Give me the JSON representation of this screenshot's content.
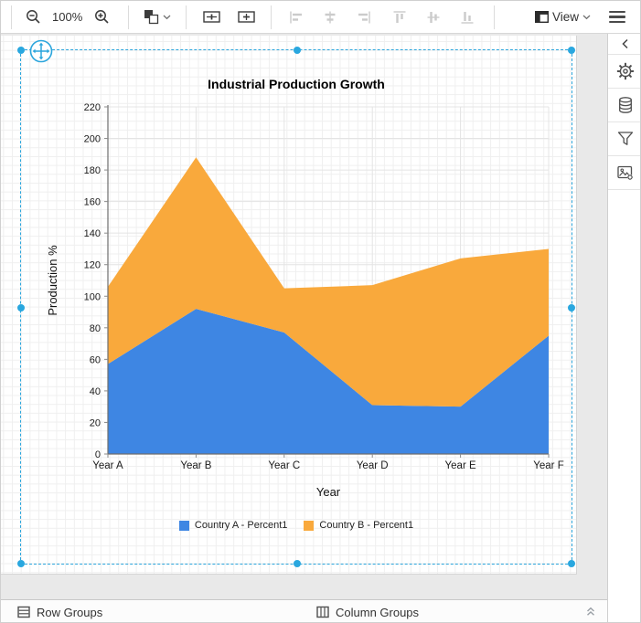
{
  "toolbar": {
    "zoom_level": "100%",
    "view_label": "View",
    "icons": {
      "zoom_out": "magnifier-minus",
      "zoom_in": "magnifier-plus",
      "theme_swatch": "overlapping-squares-dropdown",
      "make_same_width": "equal-width-box",
      "make_same_height": "equal-height-box",
      "align": [
        "align-left",
        "align-center",
        "align-right",
        "align-top",
        "align-middle",
        "align-bottom"
      ],
      "view": "layout-panel",
      "menu": "hamburger"
    }
  },
  "sidebar": {
    "items": [
      {
        "name": "collapse-panel",
        "icon": "chevron-left"
      },
      {
        "name": "properties",
        "icon": "gear"
      },
      {
        "name": "data",
        "icon": "database"
      },
      {
        "name": "filter",
        "icon": "funnel"
      },
      {
        "name": "image-manager",
        "icon": "image-settings"
      }
    ]
  },
  "bottombar": {
    "row_groups_label": "Row Groups",
    "column_groups_label": "Column Groups",
    "collapse_icon": "double-chevron-up"
  },
  "colors": {
    "selection": "#2BA5DC",
    "canvas": "#E9E9E9",
    "series_a": "#3E86E3",
    "series_b": "#F9A93C"
  },
  "chart_data": {
    "type": "area",
    "stacked": true,
    "title": "Industrial Production Growth",
    "categories": [
      "Year A",
      "Year B",
      "Year C",
      "Year D",
      "Year E",
      "Year F"
    ],
    "series": [
      {
        "name": "Country A - Percent1",
        "color": "#3E86E3",
        "values": [
          57,
          92,
          77,
          31,
          30,
          75
        ]
      },
      {
        "name": "Country B - Percent1",
        "color": "#F9A93C",
        "values": [
          49,
          96,
          28,
          76,
          94,
          55
        ]
      }
    ],
    "stacked_totals": [
      106,
      188,
      105,
      107,
      124,
      130
    ],
    "xlabel": "Year",
    "ylabel": "Production %",
    "ylim": [
      0,
      220
    ],
    "ytick_step": 20,
    "grid": true,
    "legend_position": "bottom"
  }
}
